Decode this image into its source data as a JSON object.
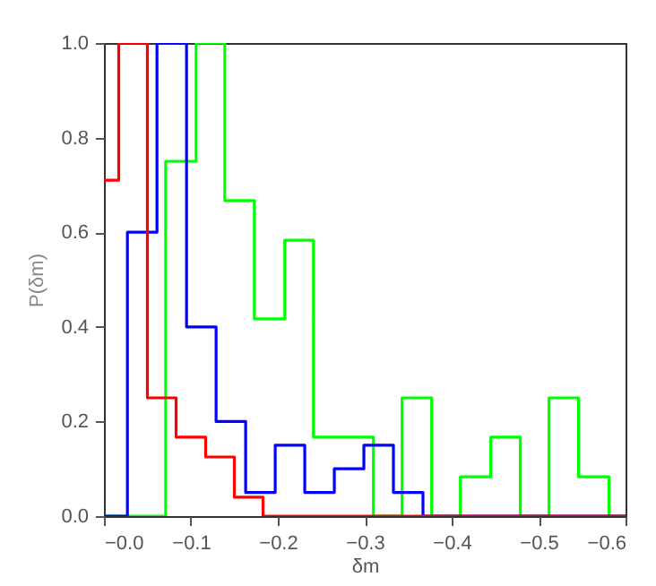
{
  "chart_data": {
    "type": "step",
    "xlabel": "δm",
    "ylabel": "P(δm)",
    "xlim": [
      0,
      -0.6
    ],
    "ylim": [
      0,
      1.0
    ],
    "xticks": [
      {
        "value": 0,
        "label": "−0.0"
      },
      {
        "value": -0.1,
        "label": "−0.1"
      },
      {
        "value": -0.2,
        "label": "−0.2"
      },
      {
        "value": -0.3,
        "label": "−0.3"
      },
      {
        "value": -0.4,
        "label": "−0.4"
      },
      {
        "value": -0.5,
        "label": "−0.5"
      },
      {
        "value": -0.6,
        "label": "−0.6"
      }
    ],
    "yticks": [
      {
        "value": 0,
        "label": "0.0"
      },
      {
        "value": 0.2,
        "label": "0.2"
      },
      {
        "value": 0.4,
        "label": "0.4"
      },
      {
        "value": 0.6,
        "label": "0.6"
      },
      {
        "value": 0.8,
        "label": "0.8"
      },
      {
        "value": 1.0,
        "label": "1.0"
      }
    ],
    "series": [
      {
        "color": "#00ff00",
        "x": [
          0,
          -0.071,
          -0.106,
          -0.139,
          -0.173,
          -0.208,
          -0.241,
          -0.31,
          -0.343,
          -0.377,
          -0.41,
          -0.445,
          -0.479,
          -0.512,
          -0.546,
          -0.581,
          -0.6
        ],
        "values": [
          0,
          0.75,
          1.0,
          0.667,
          0.417,
          0.583,
          0.167,
          0,
          0.25,
          0,
          0.083,
          0.167,
          0,
          0.25,
          0.083,
          0,
          0
        ]
      },
      {
        "color": "#0000ff",
        "x": [
          0,
          -0.027,
          -0.061,
          -0.095,
          -0.129,
          -0.163,
          -0.197,
          -0.231,
          -0.265,
          -0.299,
          -0.333,
          -0.367,
          -0.6
        ],
        "values": [
          0,
          0.6,
          1.0,
          0.4,
          0.2,
          0.05,
          0.15,
          0.05,
          0.1,
          0.15,
          0.05,
          0,
          0
        ]
      },
      {
        "color": "#ff0000",
        "x": [
          0,
          -0.017,
          -0.05,
          -0.083,
          -0.117,
          -0.15,
          -0.183,
          -0.6
        ],
        "values": [
          0.71,
          1.0,
          0.25,
          0.167,
          0.125,
          0.04,
          0,
          0
        ]
      }
    ]
  }
}
